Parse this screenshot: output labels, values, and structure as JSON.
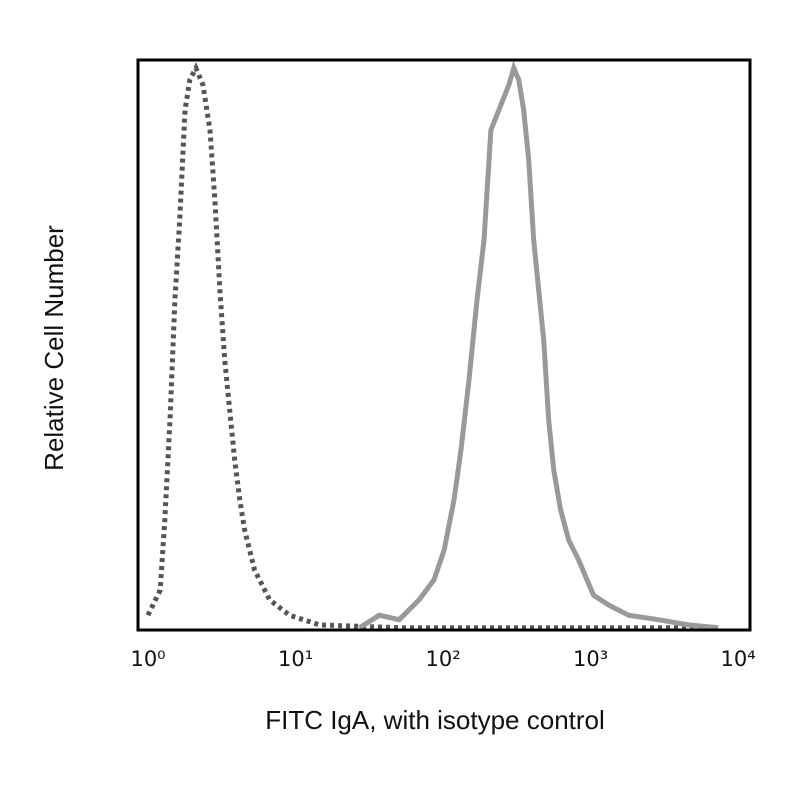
{
  "chart_data": {
    "type": "line",
    "x_label": "FITC IgA, with isotype control",
    "y_label": "Relative Cell Number",
    "x_scale": "log",
    "xlim": [
      0.855,
      12050
    ],
    "ylim": [
      0,
      100
    ],
    "xticks": [
      {
        "value": 1,
        "label": "10⁰"
      },
      {
        "value": 10,
        "label": "10¹"
      },
      {
        "value": 100,
        "label": "10²"
      },
      {
        "value": 1000,
        "label": "10³"
      },
      {
        "value": 10000,
        "label": "10⁴"
      }
    ],
    "series": [
      {
        "color": "#555555",
        "dash": "dotted",
        "x": [
          1.0,
          1.21,
          1.3,
          1.41,
          1.52,
          1.64,
          1.78,
          1.92,
          2.11,
          2.36,
          2.63,
          2.84,
          3.07,
          3.31,
          3.58,
          3.87,
          4.19,
          4.52,
          5.28,
          6.67,
          9.1,
          14.5,
          50,
          7330
        ],
        "values": [
          2.6,
          7.0,
          19.3,
          36.8,
          57.9,
          71.9,
          91.2,
          96.5,
          98.6,
          95.6,
          87.7,
          75.4,
          59.6,
          47.4,
          38.6,
          29.8,
          22.8,
          17.5,
          10.5,
          5.3,
          2.6,
          0.9,
          0.4,
          0.4
        ]
      },
      {
        "color": "#999999",
        "dash": "solid",
        "x": [
          27.1,
          37.0,
          50.4,
          68.8,
          86.9,
          101.6,
          118.6,
          132.4,
          149.9,
          169.8,
          189.4,
          211.1,
          238.9,
          279.1,
          301.7,
          326.1,
          352.4,
          381.0,
          412.0,
          445.3,
          481.3,
          520.2,
          562.3,
          626.8,
          709.8,
          829.3,
          1047,
          1323,
          1807,
          2879,
          4592,
          7330
        ],
        "values": [
          0.4,
          2.6,
          1.8,
          5.3,
          8.8,
          14.0,
          22.8,
          31.6,
          43.9,
          57.9,
          68.4,
          87.7,
          91.2,
          95.6,
          98.6,
          96.5,
          91.2,
          82.5,
          68.4,
          59.6,
          50.9,
          36.8,
          28.1,
          21.1,
          15.8,
          12.3,
          6.1,
          4.4,
          2.6,
          1.8,
          0.9,
          0.4
        ]
      }
    ]
  }
}
